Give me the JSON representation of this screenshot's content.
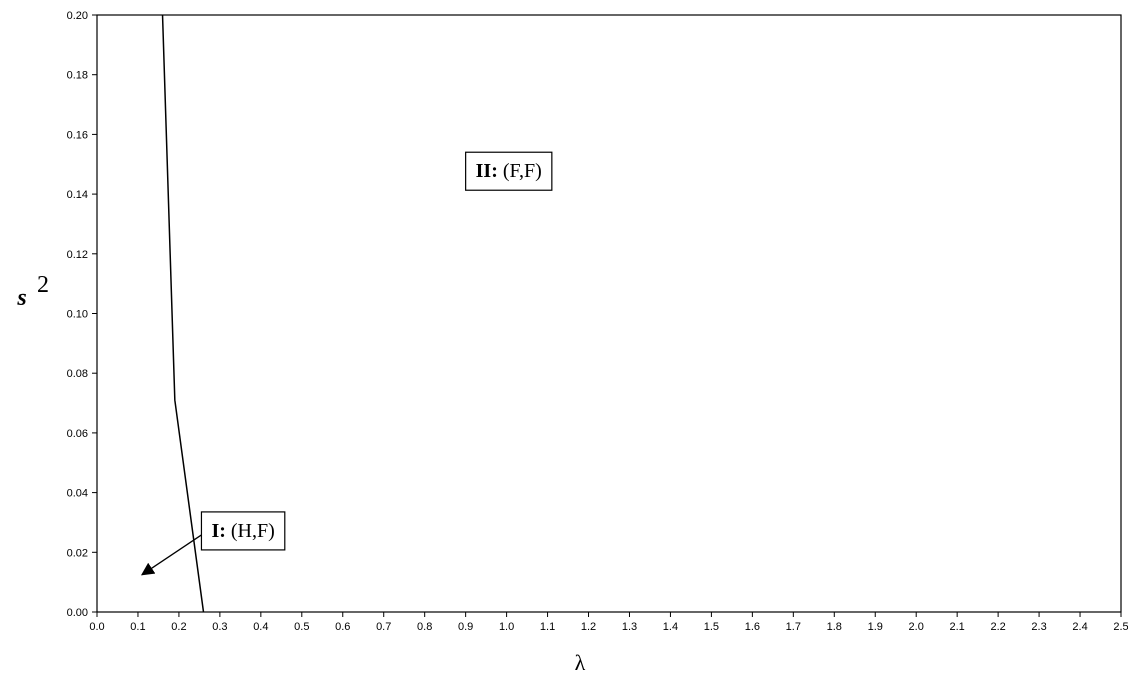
{
  "chart_data": {
    "type": "line",
    "title": "",
    "xlabel": "λ",
    "ylabel": "s",
    "ylabel_superscript": "2",
    "xlim": [
      0.0,
      2.5
    ],
    "ylim": [
      0.0,
      0.2
    ],
    "x_ticks": [
      "0.0",
      "0.1",
      "0.2",
      "0.3",
      "0.4",
      "0.5",
      "0.6",
      "0.7",
      "0.8",
      "0.9",
      "1.0",
      "1.1",
      "1.2",
      "1.3",
      "1.4",
      "1.5",
      "1.6",
      "1.7",
      "1.8",
      "1.9",
      "2.0",
      "2.1",
      "2.2",
      "2.3",
      "2.4",
      "2.5"
    ],
    "y_ticks": [
      "0.00",
      "0.02",
      "0.04",
      "0.06",
      "0.08",
      "0.10",
      "0.12",
      "0.14",
      "0.16",
      "0.18",
      "0.20"
    ],
    "grid": false,
    "series": [
      {
        "points": [
          {
            "x": 0.16,
            "y": 0.2
          },
          {
            "x": 0.19,
            "y": 0.071
          },
          {
            "x": 0.26,
            "y": 0.0
          }
        ]
      }
    ],
    "annotations": [
      {
        "bold": "II:",
        "text": "(F,F)",
        "anchor_x": 0.9,
        "anchor_y": 0.148,
        "arrow": false
      },
      {
        "bold": "I:",
        "text": "(H,F)",
        "anchor_x": 0.255,
        "anchor_y": 0.0275,
        "arrow": true,
        "arrow_to_x": 0.11,
        "arrow_to_y": 0.0125
      }
    ]
  }
}
